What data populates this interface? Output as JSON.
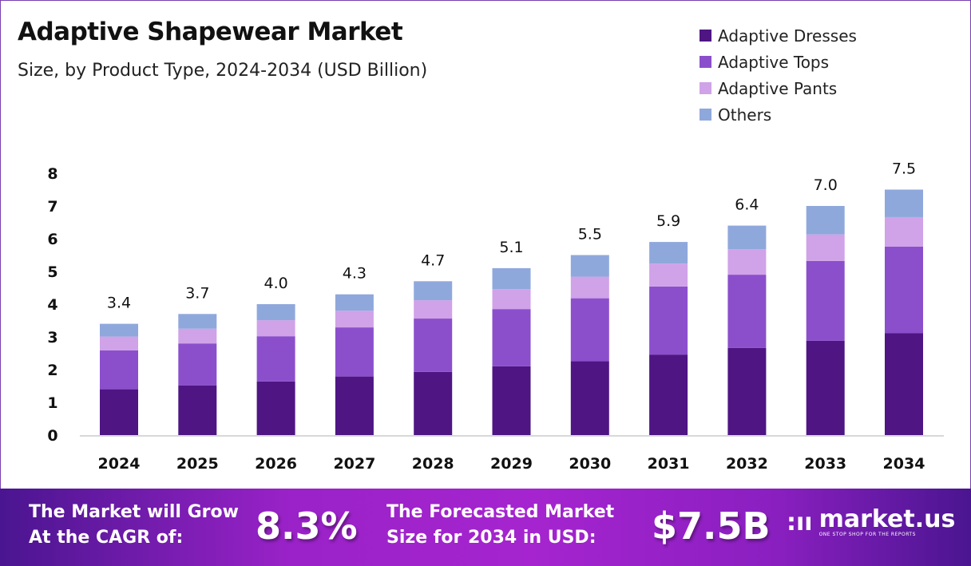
{
  "title": "Adaptive Shapewear Market",
  "subtitle": "Size, by Product Type, 2024-2034 (USD Billion)",
  "chart_data": {
    "type": "bar",
    "stacked": true,
    "categories": [
      "2024",
      "2025",
      "2026",
      "2027",
      "2028",
      "2029",
      "2030",
      "2031",
      "2032",
      "2033",
      "2034"
    ],
    "series": [
      {
        "name": "Adaptive Dresses",
        "color": "#4e1583",
        "values": [
          1.4,
          1.52,
          1.64,
          1.79,
          1.93,
          2.1,
          2.26,
          2.46,
          2.66,
          2.88,
          3.11
        ]
      },
      {
        "name": "Adaptive Tops",
        "color": "#8b4fcc",
        "values": [
          1.19,
          1.28,
          1.38,
          1.5,
          1.63,
          1.75,
          1.92,
          2.08,
          2.24,
          2.44,
          2.65
        ]
      },
      {
        "name": "Adaptive Pants",
        "color": "#d0a2e8",
        "values": [
          0.42,
          0.45,
          0.49,
          0.51,
          0.56,
          0.61,
          0.66,
          0.7,
          0.78,
          0.81,
          0.9
        ]
      },
      {
        "name": "Others",
        "color": "#8fa8dc",
        "values": [
          0.39,
          0.45,
          0.49,
          0.5,
          0.58,
          0.64,
          0.66,
          0.66,
          0.72,
          0.87,
          0.84
        ]
      }
    ],
    "totals": [
      "3.4",
      "3.7",
      "4.0",
      "4.3",
      "4.7",
      "5.1",
      "5.5",
      "5.9",
      "6.4",
      "7.0",
      "7.5"
    ],
    "yticks": [
      "0",
      "1",
      "2",
      "3",
      "4",
      "5",
      "6",
      "7",
      "8"
    ],
    "ylim": [
      0,
      8
    ],
    "grid": false,
    "legend": "top-right"
  },
  "footer": {
    "cagr_text_1": "The Market will Grow",
    "cagr_text_2": "At the CAGR of:",
    "cagr": "8.3%",
    "forecast_text_1": "The Forecasted Market",
    "forecast_text_2": "Size for 2034 in USD:",
    "forecast": "$7.5B",
    "logo_name": "market.us",
    "logo_tag": "ONE STOP SHOP FOR THE REPORTS"
  }
}
